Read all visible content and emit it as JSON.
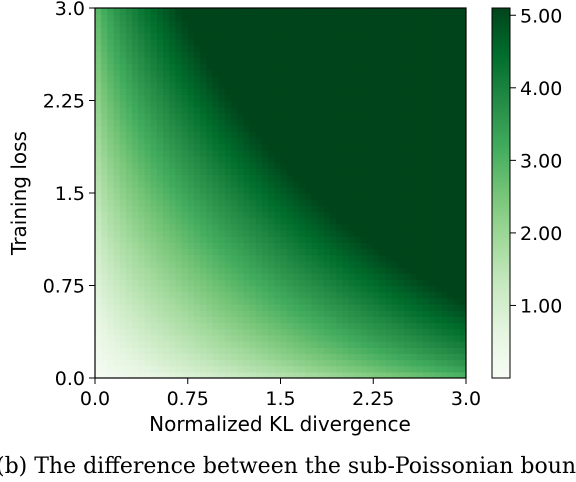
{
  "chart_data": {
    "type": "heatmap",
    "xlabel": "Normalized KL divergence",
    "ylabel": "Training loss",
    "xlim": [
      0.0,
      3.0
    ],
    "ylim": [
      0.0,
      3.0
    ],
    "x_ticks": [
      "0.0",
      "0.75",
      "1.5",
      "2.25",
      "3.0"
    ],
    "y_ticks": [
      "0.0",
      "0.75",
      "1.5",
      "2.25",
      "3.0"
    ],
    "x_tick_values": [
      0.0,
      0.75,
      1.5,
      2.25,
      3.0
    ],
    "y_tick_values": [
      0.0,
      0.75,
      1.5,
      2.25,
      3.0
    ],
    "colormap": "Greens",
    "colorbar": {
      "range": [
        0.0,
        5.1
      ],
      "ticks": [
        "1.00",
        "2.00",
        "3.00",
        "4.00",
        "5.00"
      ],
      "tick_values": [
        1.0,
        2.0,
        3.0,
        4.0,
        5.0
      ],
      "placement": "right"
    },
    "colors": {
      "low": "#f7fcf5",
      "high": "#00441b"
    }
  },
  "caption": "(b) The difference between the sub-Poissonian bound"
}
